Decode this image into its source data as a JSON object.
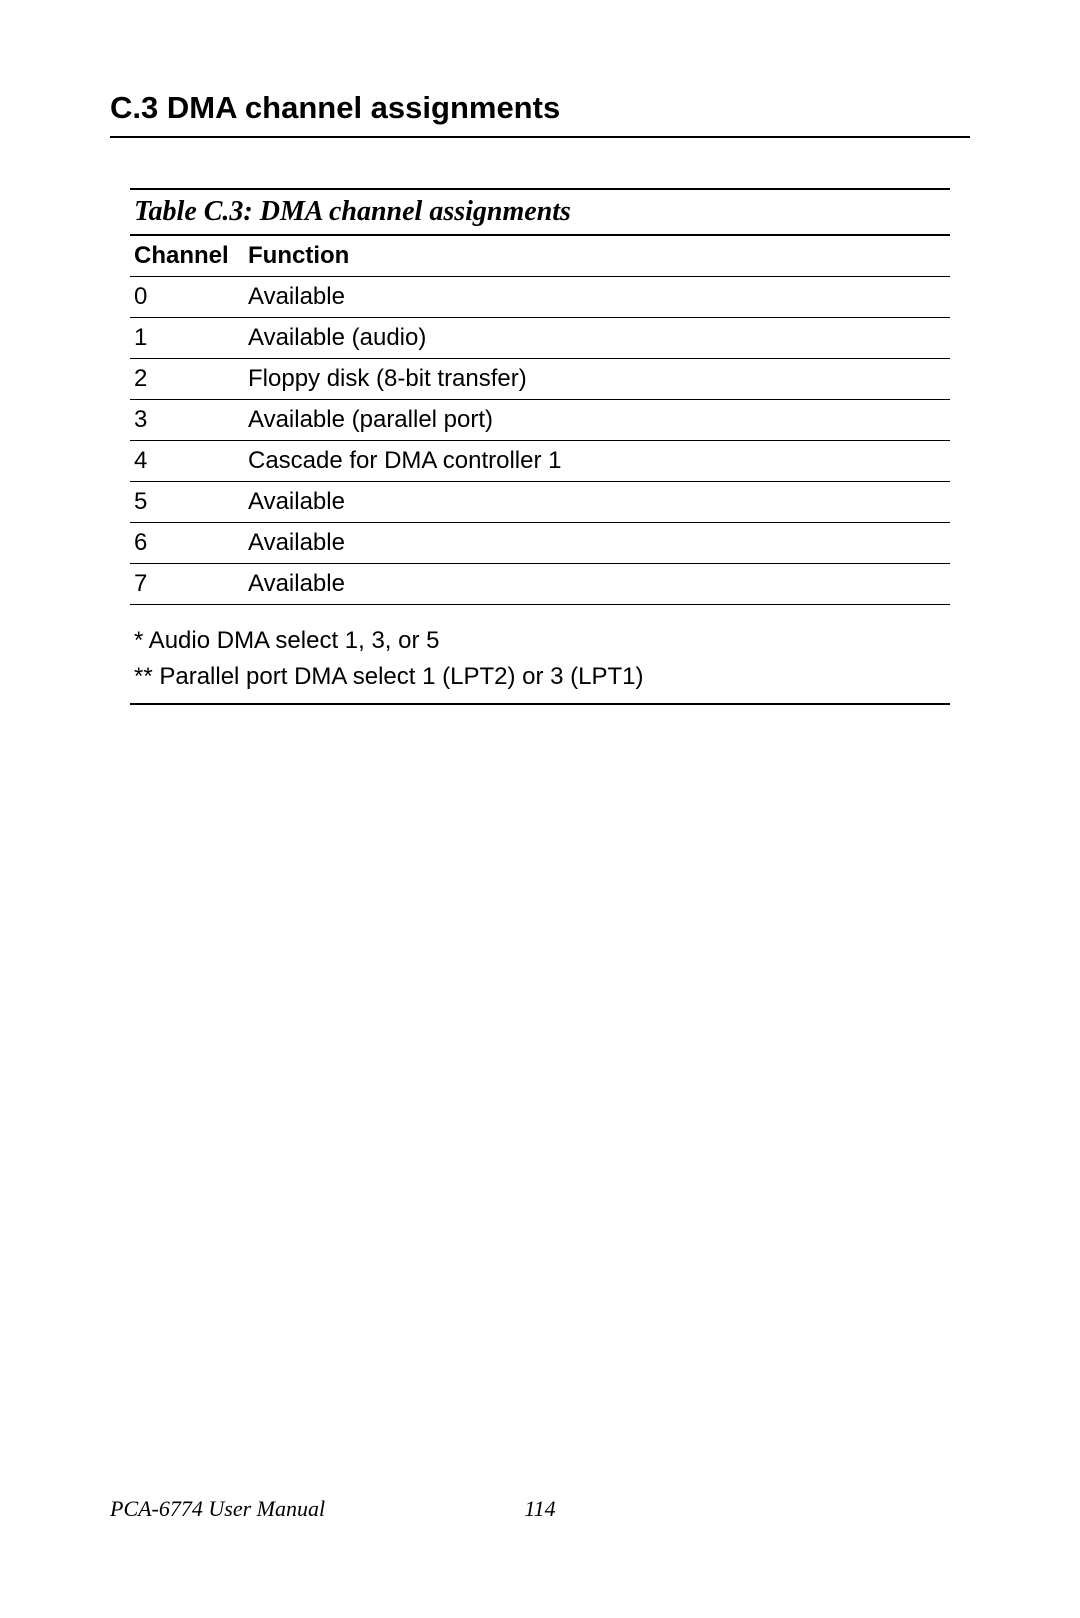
{
  "section": {
    "heading": "C.3 DMA channel assignments"
  },
  "table": {
    "title": "Table C.3: DMA channel assignments",
    "columns": [
      "Channel",
      "Function"
    ],
    "rows": [
      {
        "channel": "0",
        "function": "Available"
      },
      {
        "channel": "1",
        "function": "Available (audio)"
      },
      {
        "channel": "2",
        "function": "Floppy disk (8-bit transfer)"
      },
      {
        "channel": "3",
        "function": "Available (parallel port)"
      },
      {
        "channel": "4",
        "function": "Cascade for DMA controller 1"
      },
      {
        "channel": "5",
        "function": "Available"
      },
      {
        "channel": "6",
        "function": "Available"
      },
      {
        "channel": "7",
        "function": "Available"
      }
    ],
    "notes": [
      "* Audio DMA select 1, 3, or 5",
      "** Parallel port DMA select 1 (LPT2) or 3 (LPT1)"
    ]
  },
  "footer": {
    "manual": "PCA-6774 User Manual",
    "page_number": "114"
  }
}
